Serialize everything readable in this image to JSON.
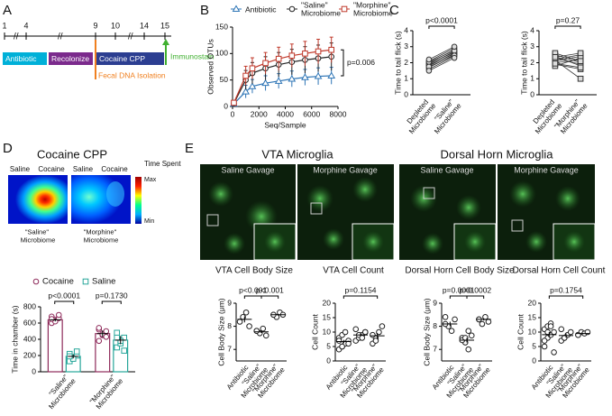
{
  "panel_labels": [
    "A",
    "B",
    "C",
    "D",
    "E"
  ],
  "timeline": {
    "days": [
      1,
      4,
      9,
      10,
      14,
      15
    ],
    "phases": [
      "Antibiotic",
      "Recolonize",
      "Cocaine CPP"
    ],
    "event": "Fecal DNA Isolation",
    "endpoint": "Immunostain"
  },
  "heatmap": {
    "title": "Cocaine CPP",
    "chambers": [
      "Saline",
      "Cocaine"
    ],
    "scale_title": "Time Spent",
    "scale_max": "Max",
    "scale_min": "Min",
    "labels": [
      "\"Saline\" Microbiome",
      "\"Morphine\" Microbiome"
    ]
  },
  "microglia": {
    "titles": [
      "VTA Microglia",
      "Dorsal Horn Microglia"
    ],
    "gavage": [
      "Saline Gavage",
      "Morphine Gavage"
    ]
  },
  "chart_data": [
    {
      "type": "line",
      "xlabel": "Seq/Sample",
      "ylabel": "Observed OTUs",
      "x": [
        100,
        1000,
        1500,
        2500,
        3500,
        4500,
        5500,
        6500,
        7500
      ],
      "xlim": [
        0,
        8000
      ],
      "xticks": [
        0,
        2000,
        4000,
        6000,
        8000
      ],
      "ylim": [
        0,
        150
      ],
      "yticks": [
        0,
        50,
        100,
        150
      ],
      "series": [
        {
          "name": "Antibiotic",
          "color": "#2e75b6",
          "marker": "triangle",
          "values": [
            5,
            28,
            38,
            44,
            48,
            52,
            55,
            57,
            58
          ],
          "errors": [
            3,
            12,
            13,
            14,
            14,
            15,
            15,
            16,
            16
          ]
        },
        {
          "name": "\"Saline\" Microbiome",
          "color": "#222222",
          "marker": "circle",
          "values": [
            6,
            50,
            63,
            72,
            79,
            84,
            88,
            91,
            94
          ],
          "errors": [
            3,
            18,
            20,
            22,
            23,
            24,
            25,
            25,
            26
          ]
        },
        {
          "name": "\"Morphine\" Microbiome",
          "color": "#c0392b",
          "marker": "square",
          "values": [
            7,
            58,
            72,
            82,
            90,
            96,
            100,
            104,
            107
          ],
          "errors": [
            3,
            18,
            20,
            20,
            22,
            22,
            23,
            23,
            24
          ]
        }
      ],
      "annotation": "p=0.006"
    },
    {
      "type": "paired",
      "ylabel": "Time to tail flick (s)",
      "categories": [
        "Depleted Microbiome",
        "\"Saline\" Microbiome"
      ],
      "values": [
        [
          1.6,
          1.8,
          1.9,
          2.0,
          1.7,
          2.1,
          1.85,
          1.95,
          2.05,
          1.75,
          1.5,
          2.2
        ],
        [
          2.4,
          2.6,
          2.7,
          2.8,
          2.5,
          2.9,
          2.55,
          2.65,
          2.75,
          2.45,
          2.3,
          3.0
        ]
      ],
      "ylim": [
        0,
        4
      ],
      "yticks": [
        0,
        1,
        2,
        3,
        4
      ],
      "color": "#333333",
      "marker": "circle",
      "annotation": "p<0.0001"
    },
    {
      "type": "paired",
      "ylabel": "Time to tail flick (s)",
      "categories": [
        "Depleted Microbiome",
        "\"Morphine\" Microbiome"
      ],
      "values": [
        [
          2.1,
          2.3,
          2.0,
          2.5,
          1.9,
          2.2,
          2.4,
          1.8,
          2.6,
          2.15,
          2.35,
          1.95
        ],
        [
          2.4,
          1.9,
          2.2,
          2.0,
          1.6,
          2.5,
          1.8,
          2.3,
          2.1,
          1.0,
          2.6,
          1.7
        ]
      ],
      "ylim": [
        0,
        4
      ],
      "yticks": [
        0,
        1,
        2,
        3,
        4
      ],
      "color": "#333333",
      "marker": "square",
      "annotation": "p=0.27"
    },
    {
      "type": "bar",
      "ylabel": "Time in chamber (s)",
      "categories": [
        "\"Saline\" Microbiome",
        "\"Morphine\" Microbiome"
      ],
      "ylim": [
        0,
        800
      ],
      "yticks": [
        0,
        200,
        400,
        600,
        800
      ],
      "series": [
        {
          "name": "Cocaine",
          "color": "#8e2a5a",
          "marker": "circle",
          "values": [
            640,
            470
          ],
          "errors": [
            20,
            40
          ],
          "points": [
            [
              600,
              640,
              660,
              680,
              620,
              700,
              650
            ],
            [
              380,
              450,
              500,
              520,
              460,
              430,
              540
            ]
          ]
        },
        {
          "name": "Saline",
          "color": "#26a69a",
          "marker": "square",
          "values": [
            190,
            390
          ],
          "errors": [
            25,
            50
          ],
          "points": [
            [
              130,
              180,
              200,
              220,
              160,
              250,
              190
            ],
            [
              300,
              350,
              420,
              480,
              380,
              260,
              420
            ]
          ]
        }
      ],
      "annotations": [
        "p<0.0001",
        "p=0.1730"
      ]
    },
    {
      "type": "dot",
      "title": "VTA Cell Body Size",
      "ylabel": "Cell Body Size (μm)",
      "categories": [
        "Antibiotic",
        "\"Saline\" Microbiome",
        "\"Morphine\" Microbiome"
      ],
      "values": [
        [
          8.2,
          8.4,
          8.6,
          8.0
        ],
        [
          7.8,
          7.7,
          7.9,
          7.6,
          7.8
        ],
        [
          8.5,
          8.4,
          8.6,
          8.5,
          8.5
        ]
      ],
      "means": [
        8.3,
        7.76,
        8.5
      ],
      "errors": [
        0.13,
        0.05,
        0.03
      ],
      "ylim": [
        6.5,
        9
      ],
      "yticks": [
        7,
        8,
        9
      ],
      "color": "#222222",
      "annotations": [
        "p<0.001",
        "p<0.001"
      ]
    },
    {
      "type": "dot",
      "title": "VTA Cell Count",
      "ylabel": "Cell Count",
      "categories": [
        "Antibiotic",
        "\"Saline\" Microbiome",
        "\"Morphine\" Microbiome"
      ],
      "values": [
        [
          4,
          5,
          6,
          7,
          8,
          9,
          10,
          6,
          7,
          5
        ],
        [
          7,
          8,
          9,
          10,
          11,
          9,
          8,
          10
        ],
        [
          6,
          8,
          10,
          12,
          9,
          7
        ]
      ],
      "means": [
        6.7,
        9,
        8.7
      ],
      "errors": [
        0.6,
        0.5,
        1
      ],
      "ylim": [
        0,
        20
      ],
      "yticks": [
        0,
        5,
        10,
        15,
        20
      ],
      "color": "#222222",
      "annotations": [
        "p=0.1154"
      ]
    },
    {
      "type": "dot",
      "title": "Dorsal Horn Cell Body Size",
      "ylabel": "Cell Body Size (μm)",
      "categories": [
        "Antibiotic",
        "\"Saline\" Microbiome",
        "\"Morphine\" Microbiome"
      ],
      "values": [
        [
          8.4,
          8.0,
          7.8,
          8.3,
          8.1
        ],
        [
          7.5,
          7.3,
          7.0,
          7.6,
          7.4,
          7.5,
          7.8
        ],
        [
          8.3,
          8.1,
          8.4,
          8.2,
          8.3
        ]
      ],
      "means": [
        8.1,
        7.4,
        8.3
      ],
      "errors": [
        0.1,
        0.1,
        0.05
      ],
      "ylim": [
        6.5,
        9
      ],
      "yticks": [
        7,
        8,
        9
      ],
      "color": "#222222",
      "annotations": [
        "p=0.0001",
        "p=0.0002"
      ]
    },
    {
      "type": "dot",
      "title": "Dorsal Horn Cell Count",
      "ylabel": "Cell Count",
      "categories": [
        "Antibiotic",
        "\"Saline\" Microbiome",
        "\"Morphine\" Microbiome"
      ],
      "values": [
        [
          5,
          8,
          9,
          10,
          11,
          12,
          13,
          3,
          7,
          10,
          12
        ],
        [
          7,
          8,
          9,
          10,
          11,
          8
        ],
        [
          9,
          10,
          9.5,
          10,
          9
        ]
      ],
      "means": [
        9.1,
        8.8,
        9.5
      ],
      "errors": [
        0.9,
        0.7,
        0.2
      ],
      "ylim": [
        0,
        20
      ],
      "yticks": [
        0,
        5,
        10,
        15,
        20
      ],
      "color": "#222222",
      "annotations": [
        "p=0.1754"
      ]
    }
  ]
}
